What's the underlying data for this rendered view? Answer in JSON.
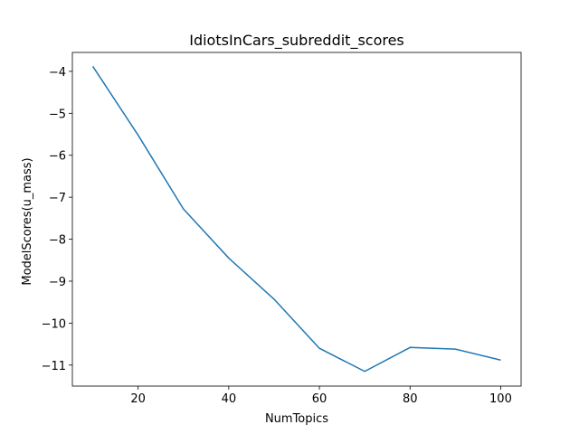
{
  "chart_data": {
    "type": "line",
    "title": "IdiotsInCars_subreddit_scores",
    "xlabel": "NumTopics",
    "ylabel": "ModelScores(u_mass)",
    "xlim": [
      5.5,
      104.5
    ],
    "ylim": [
      -11.5,
      -3.55
    ],
    "xticks": [
      20,
      40,
      60,
      80,
      100
    ],
    "xtick_labels": [
      "20",
      "40",
      "60",
      "80",
      "100"
    ],
    "yticks": [
      -4,
      -5,
      -6,
      -7,
      -8,
      -9,
      -10,
      -11
    ],
    "ytick_labels": [
      "−4",
      "−5",
      "−6",
      "−7",
      "−8",
      "−9",
      "−10",
      "−11"
    ],
    "series": [
      {
        "name": "u_mass",
        "color": "#1f77b4",
        "x": [
          10,
          20,
          30,
          40,
          50,
          60,
          70,
          80,
          90,
          100
        ],
        "values": [
          -3.88,
          -5.52,
          -7.28,
          -8.45,
          -9.43,
          -10.6,
          -11.15,
          -10.58,
          -10.62,
          -10.88
        ]
      }
    ]
  }
}
